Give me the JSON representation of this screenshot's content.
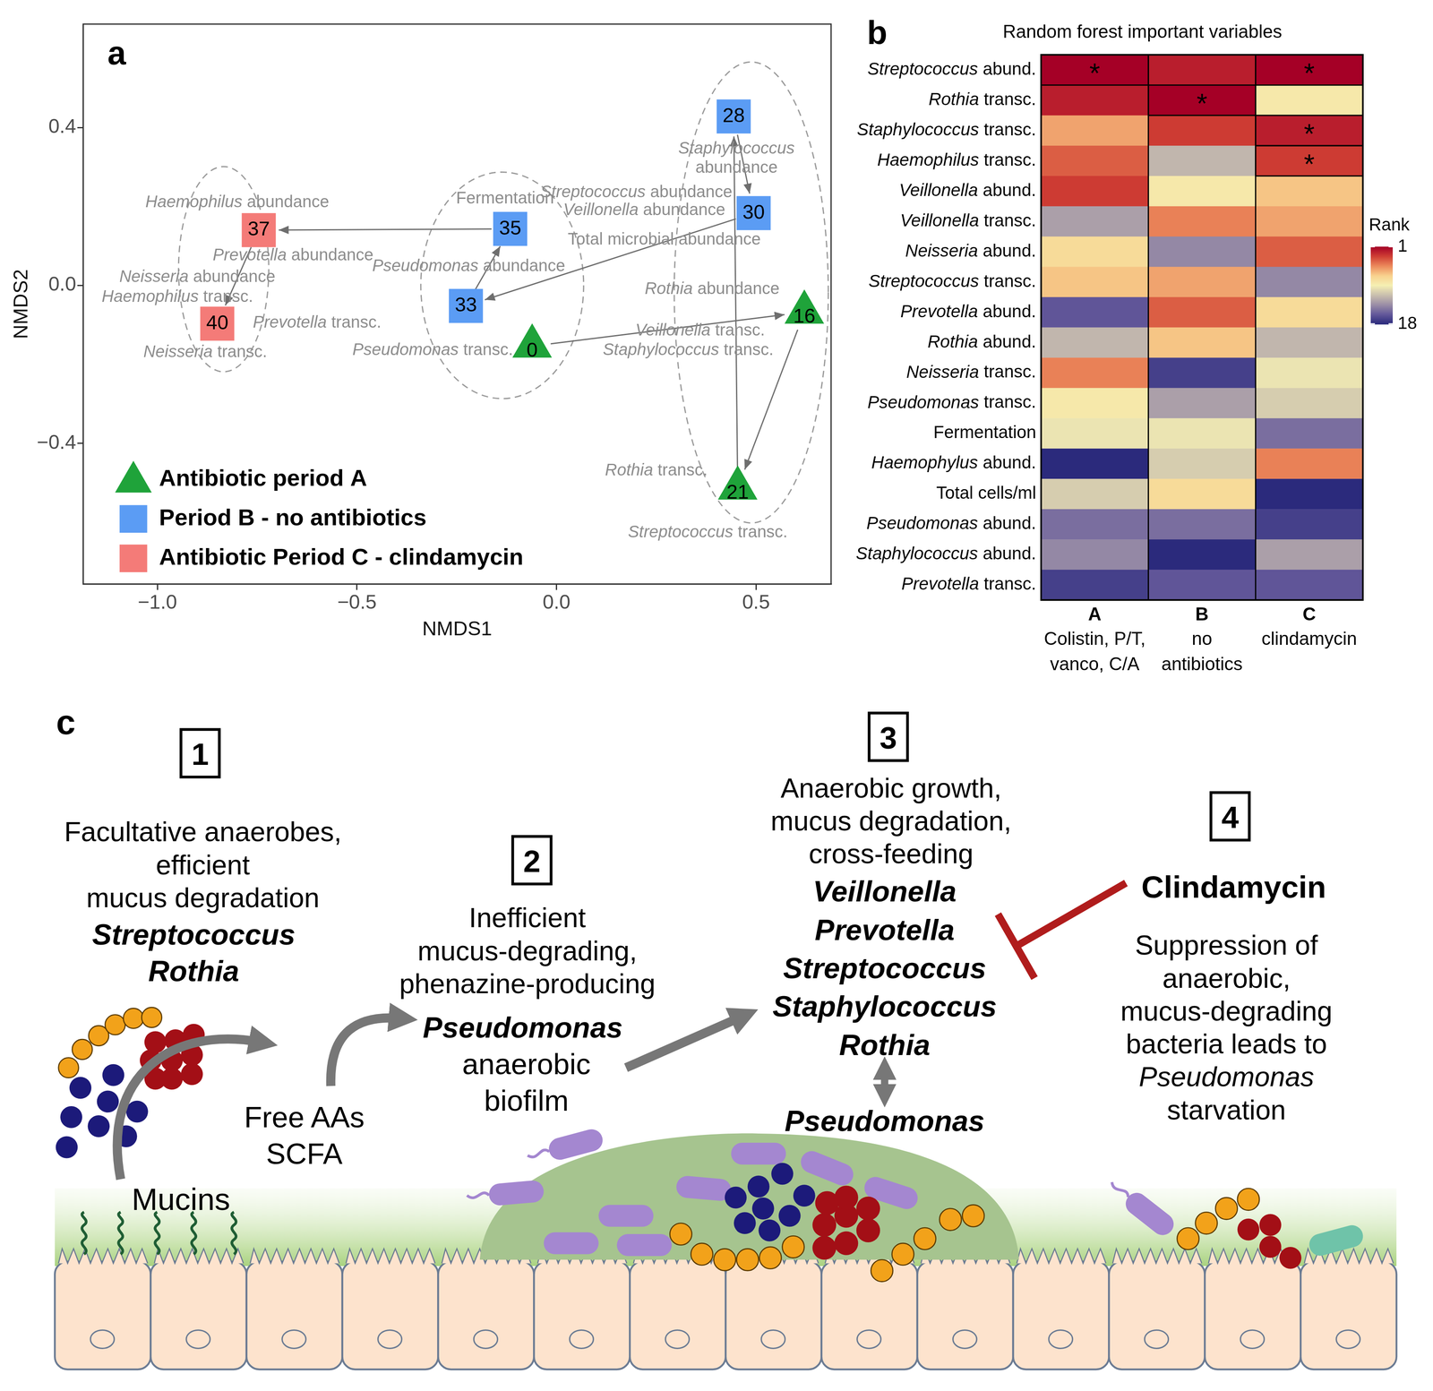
{
  "chart_data": [
    {
      "type": "scatter",
      "label": "a",
      "xlabel": "NMDS1",
      "ylabel": "NMDS2",
      "xlim": [
        -1.186,
        0.688
      ],
      "ylim": [
        -0.757,
        0.662
      ],
      "xticks": [
        {
          "value": -1,
          "label": "−1.0"
        },
        {
          "value": -0.5,
          "label": "−0.5"
        },
        {
          "value": 0,
          "label": "0.0"
        },
        {
          "value": 0.5,
          "label": "0.5"
        }
      ],
      "yticks": [
        {
          "value": -0.4,
          "label": "−0.4"
        },
        {
          "value": 0,
          "label": "0.0"
        },
        {
          "value": 0.4,
          "label": "0.4"
        }
      ],
      "grid": false,
      "legend": "bottom left",
      "series": [
        {
          "name": "Antibiotic period A",
          "color": "#1fa33a",
          "marker": "triangle",
          "x": [
            -0.061,
            0.621,
            0.454
          ],
          "y": [
            -0.154,
            -0.068,
            -0.514
          ],
          "point_labels": [
            0,
            16,
            21
          ]
        },
        {
          "name": "Period B - no antibiotics",
          "color": "#5b9cf4",
          "marker": "square",
          "x": [
            0.444,
            0.494,
            -0.227,
            -0.116
          ],
          "y": [
            0.428,
            0.183,
            -0.052,
            0.143
          ],
          "point_labels": [
            28,
            30,
            33,
            35
          ]
        },
        {
          "name": "Antibiotic Period C - clindamycin",
          "color": "#f47b78",
          "marker": "square",
          "x": [
            -0.746,
            -0.85
          ],
          "y": [
            0.14,
            -0.097
          ],
          "point_labels": [
            37,
            40
          ]
        }
      ],
      "trajectory": [
        0,
        16,
        21,
        28,
        30,
        33,
        35,
        37,
        40
      ],
      "ellipses": [
        {
          "x": -0.834,
          "y": 0.041,
          "rx": 0.113,
          "ry": 0.26
        },
        {
          "x": -0.136,
          "y": 0.0,
          "rx": 0.204,
          "ry": 0.287
        },
        {
          "x": 0.488,
          "y": -0.018,
          "rx": 0.193,
          "ry": 0.584
        }
      ],
      "annotations": [
        {
          "text": "Staphylococcus\nabundance",
          "x": 0.451,
          "y": 0.321
        },
        {
          "text": "Fermentation",
          "x": -0.129,
          "y": 0.219
        },
        {
          "text": "Streptococcus abundance",
          "x": 0.2,
          "y": 0.235
        },
        {
          "text": "Veillonella abundance",
          "x": 0.22,
          "y": 0.19
        },
        {
          "text": "Total microbial abundance",
          "x": 0.27,
          "y": 0.115
        },
        {
          "text": "Haemophilus abundance",
          "x": -0.8,
          "y": 0.21
        },
        {
          "text": "Prevotella abundance",
          "x": -0.66,
          "y": 0.075
        },
        {
          "text": "Neisseria abundance",
          "x": -0.9,
          "y": 0.02
        },
        {
          "text": "Pseudomonas abundance",
          "x": -0.22,
          "y": 0.048
        },
        {
          "text": "Haemophilus transc.",
          "x": -0.95,
          "y": -0.03
        },
        {
          "text": "Prevotella transc.",
          "x": -0.6,
          "y": -0.095
        },
        {
          "text": "Pseudomonas transc.",
          "x": -0.31,
          "y": -0.165
        },
        {
          "text": "Neisseria transc.",
          "x": -0.88,
          "y": -0.17
        },
        {
          "text": "Rothia abundance",
          "x": 0.39,
          "y": -0.01
        },
        {
          "text": "Veillonella transc.",
          "x": 0.36,
          "y": -0.115
        },
        {
          "text": "Staphylococcus transc.",
          "x": 0.33,
          "y": -0.165
        },
        {
          "text": "Rothia transc.",
          "x": 0.25,
          "y": -0.47
        },
        {
          "text": "Streptococcus transc.",
          "x": 0.379,
          "y": -0.627
        }
      ]
    },
    {
      "type": "heatmap",
      "label": "b",
      "title": "Random forest important variables",
      "rows": [
        "Streptococcus abund.",
        "Rothia transc.",
        "Staphylococcus transc.",
        "Haemophilus transc.",
        "Veillonella abund.",
        "Veillonella transc.",
        "Neisseria abund.",
        "Streptococcus transc.",
        "Prevotella abund.",
        "Rothia abund.",
        "Neisseria transc.",
        "Pseudomonas transc.",
        "Fermentation",
        "Haemophylus abund.",
        "Total cells/ml",
        "Pseudomonas abund.",
        "Staphylococcus abund.",
        "Prevotella transc."
      ],
      "columns": [
        {
          "name": "A",
          "description": [
            "Colistin, P/T,",
            "vanco, C/A"
          ]
        },
        {
          "name": "B",
          "description": [
            "no",
            "antibiotics"
          ]
        },
        {
          "name": "C",
          "description": [
            "clindamycin"
          ]
        }
      ],
      "values": [
        [
          1,
          2,
          1
        ],
        [
          2,
          1,
          9
        ],
        [
          6,
          3,
          2
        ],
        [
          4,
          12,
          3
        ],
        [
          3,
          9,
          7
        ],
        [
          13,
          5,
          6
        ],
        [
          8,
          14,
          4
        ],
        [
          7,
          6,
          14
        ],
        [
          16,
          4,
          8
        ],
        [
          12,
          7,
          12
        ],
        [
          5,
          17,
          10
        ],
        [
          9,
          13,
          11
        ],
        [
          10,
          10,
          15
        ],
        [
          18,
          11,
          5
        ],
        [
          11,
          8,
          18
        ],
        [
          15,
          15,
          17
        ],
        [
          14,
          18,
          13
        ],
        [
          17,
          16,
          16
        ]
      ],
      "marks": [
        [
          "*",
          null,
          "*"
        ],
        [
          null,
          "*",
          null
        ],
        [
          null,
          null,
          "*"
        ],
        [
          null,
          null,
          "*"
        ],
        [
          null,
          null,
          null
        ],
        [
          null,
          null,
          null
        ],
        [
          null,
          null,
          null
        ],
        [
          null,
          null,
          null
        ],
        [
          null,
          null,
          null
        ],
        [
          null,
          null,
          null
        ],
        [
          null,
          null,
          null
        ],
        [
          null,
          null,
          null
        ],
        [
          null,
          null,
          null
        ],
        [
          null,
          null,
          null
        ],
        [
          null,
          null,
          null
        ],
        [
          null,
          null,
          null
        ],
        [
          null,
          null,
          null
        ],
        [
          null,
          null,
          null
        ]
      ],
      "colorbar": {
        "title": "Rank",
        "range": [
          1,
          18
        ],
        "ticks": [
          1,
          18
        ],
        "colors": [
          "#a50026",
          "#cf3f34",
          "#ec8a5c",
          "#f8d28e",
          "#f5efb3",
          "#c9bfae",
          "#9b8ea6",
          "#63589a",
          "#2b2a7c"
        ]
      }
    }
  ],
  "diagram": {
    "label": "c",
    "substrate": "Mucins",
    "products": [
      "Free AAs",
      "SCFA"
    ],
    "steps": [
      {
        "number": 1,
        "description": [
          "Facultative anaerobes,",
          "efficient",
          "mucus degradation"
        ],
        "taxa": [
          "Streptococcus",
          "Rothia"
        ]
      },
      {
        "number": 2,
        "description": [
          "Inefficient",
          "mucus-degrading,",
          "phenazine-producing"
        ],
        "taxa": [
          "Pseudomonas"
        ],
        "state": [
          "anaerobic",
          "biofilm"
        ]
      },
      {
        "number": 3,
        "description": [
          "Anaerobic growth,",
          "mucus degradation,",
          "cross-feeding"
        ],
        "taxa": [
          "Veillonella",
          "Prevotella",
          "Streptococcus",
          "Staphylococcus",
          "Rothia"
        ],
        "interacts_with": "Pseudomonas"
      },
      {
        "number": 4,
        "agent": "Clindamycin",
        "description": [
          "Suppression of",
          "anaerobic,",
          "mucus-degrading",
          "bacteria leads to",
          "Pseudomonas",
          "starvation"
        ]
      }
    ]
  }
}
